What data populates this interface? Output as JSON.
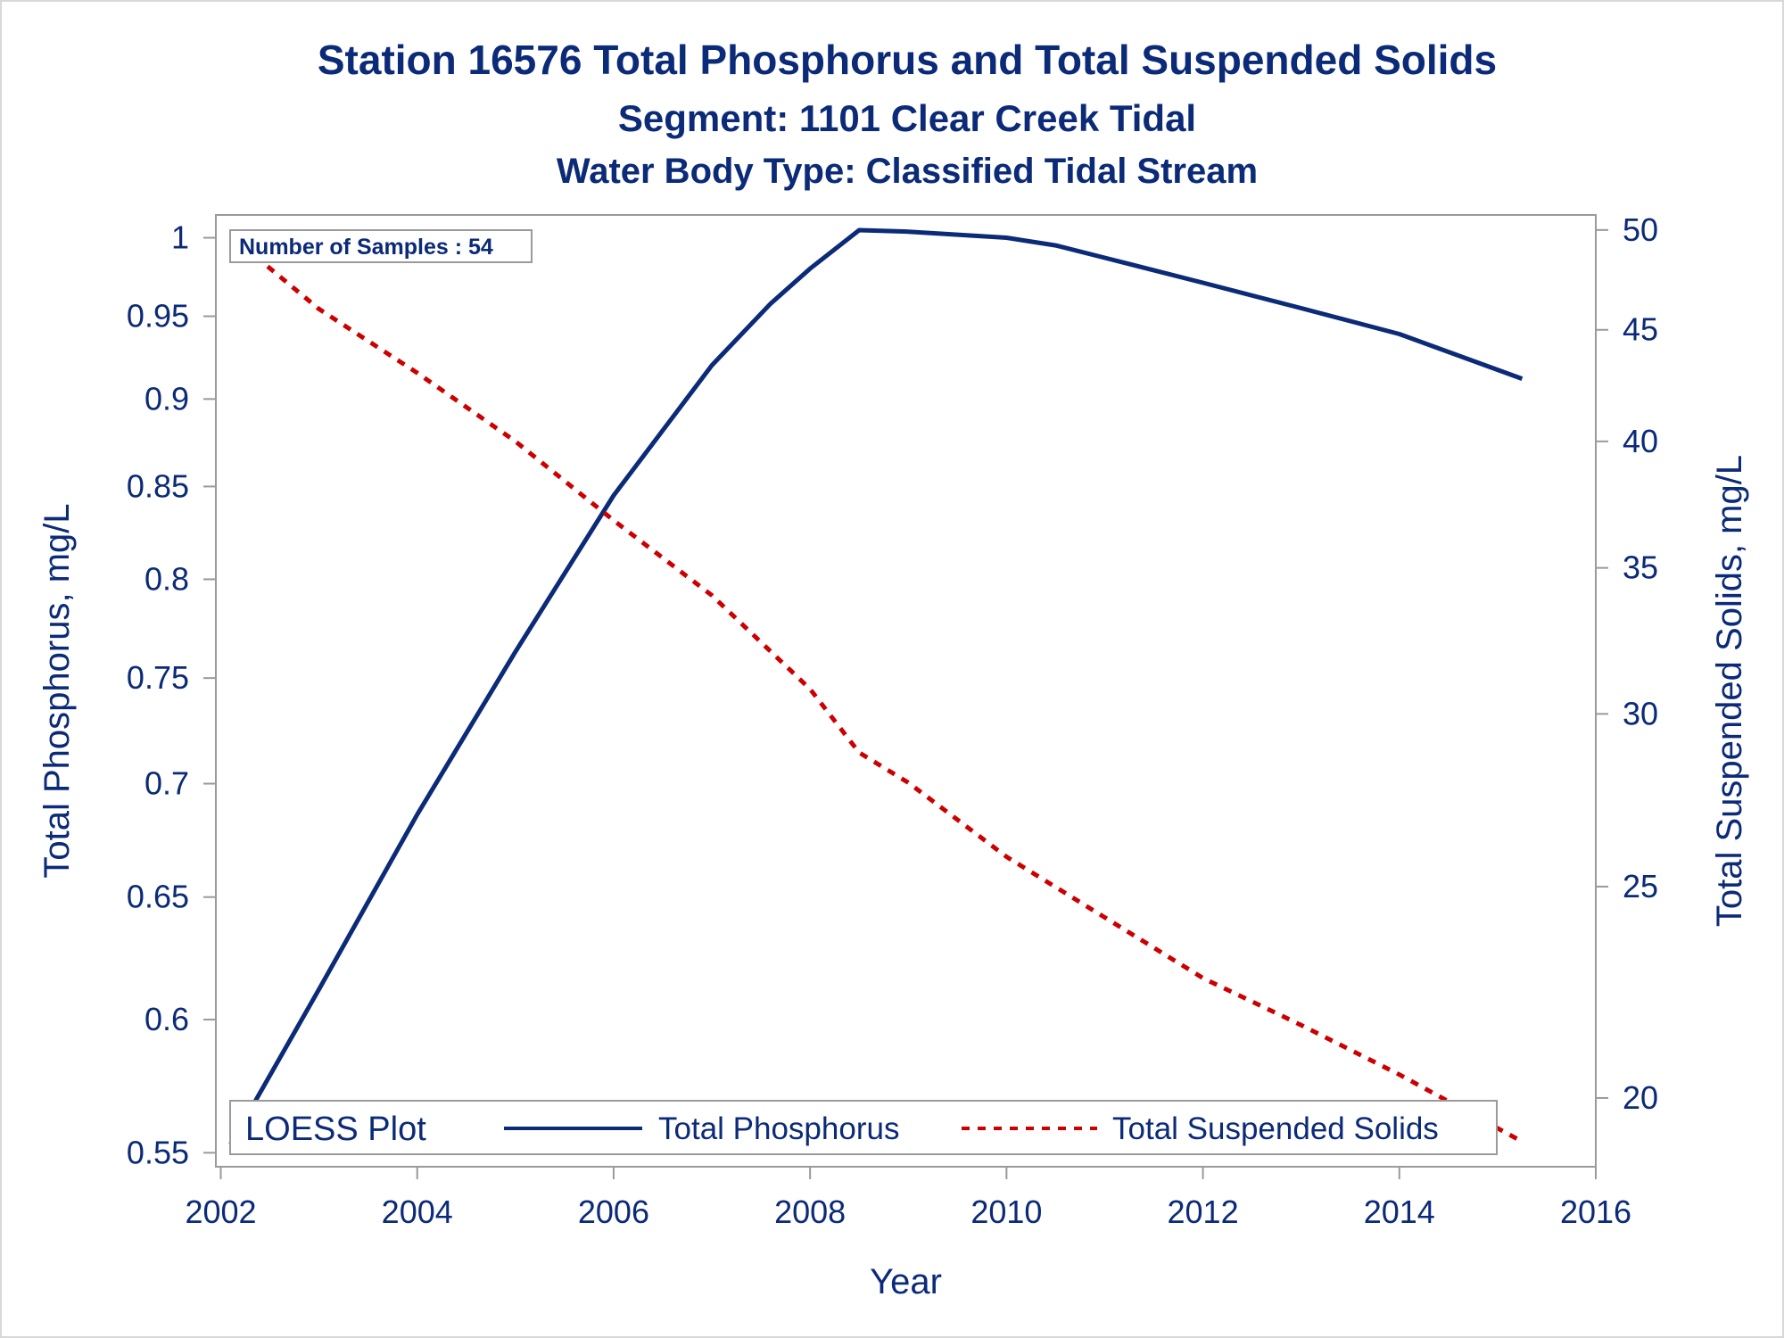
{
  "colors": {
    "text": "#0b2a78",
    "tp_line": "#0b2a78",
    "tss_line": "#cc0000",
    "frame": "#9a9a9a",
    "outer_border": "#d8d8d8"
  },
  "chart_data": {
    "type": "line",
    "title": "Station 16576  Total Phosphorus and Total Suspended Solids",
    "subtitle": "Segment: 1101  Clear Creek Tidal",
    "subtitle2": "Water Body Type: Classified Tidal Stream",
    "xlabel": "Year",
    "ylabel": "Total Phosphorus, mg/L",
    "y2label": "Total Suspended Solids, mg/L",
    "xlim": [
      2002,
      2016
    ],
    "ylim": [
      0.55,
      1.0
    ],
    "y_scale": "log",
    "y2lim": [
      19,
      50
    ],
    "y2_scale": "log",
    "x_ticks": [
      "2002",
      "2004",
      "2006",
      "2008",
      "2010",
      "2012",
      "2014",
      "2016"
    ],
    "y_ticks": [
      "0.55",
      "0.6",
      "0.65",
      "0.7",
      "0.75",
      "0.8",
      "0.85",
      "0.9",
      "0.95",
      "1"
    ],
    "y2_ticks": [
      "20",
      "25",
      "30",
      "35",
      "40",
      "45",
      "50"
    ],
    "annotation": "Number of Samples : 54",
    "legend": {
      "title": "LOESS Plot",
      "placement": "bottom-inside",
      "entries": [
        "Total Phosphorus",
        "Total Suspended Solids"
      ]
    },
    "series": [
      {
        "name": "Total Phosphorus",
        "axis": "left",
        "style": "solid",
        "x": [
          2002.1,
          2003.0,
          2004.0,
          2005.0,
          2006.0,
          2007.0,
          2007.6,
          2008.0,
          2008.5,
          2009.0,
          2010.0,
          2010.5,
          2011.0,
          2012.0,
          2013.0,
          2014.0,
          2015.25
        ],
        "y": [
          0.553,
          0.612,
          0.686,
          0.763,
          0.845,
          0.92,
          0.958,
          0.98,
          1.005,
          1.004,
          1.0,
          0.995,
          0.987,
          0.971,
          0.955,
          0.939,
          0.912
        ]
      },
      {
        "name": "Total Suspended Solids",
        "axis": "right",
        "style": "dashed",
        "x": [
          2002.1,
          2003.0,
          2004.0,
          2005.0,
          2006.0,
          2007.0,
          2008.0,
          2008.5,
          2009.0,
          2010.0,
          2011.0,
          2012.0,
          2013.0,
          2014.0,
          2015.25
        ],
        "y": [
          49.7,
          46.0,
          43.0,
          40.0,
          36.8,
          34.0,
          30.8,
          28.8,
          27.9,
          25.8,
          24.2,
          22.7,
          21.6,
          20.5,
          19.1
        ]
      }
    ]
  }
}
